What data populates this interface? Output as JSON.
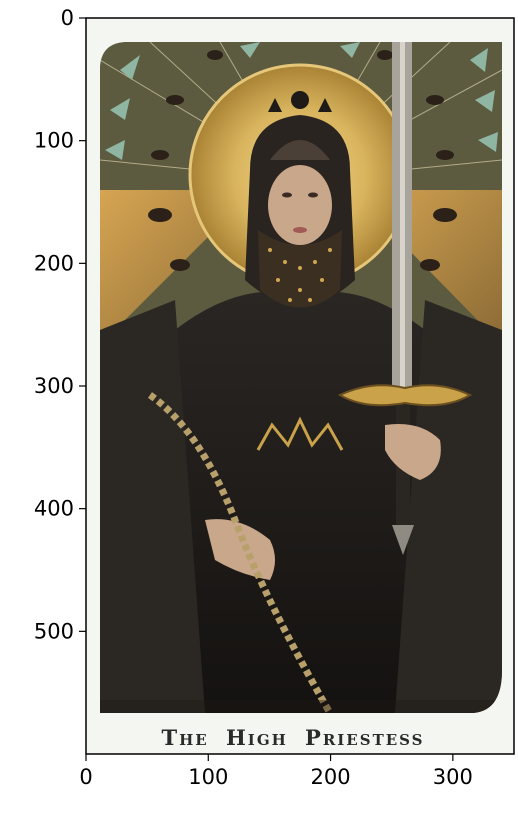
{
  "image": {
    "description_title": "THE HIGH PRIESTESS",
    "title_main": [
      "T",
      "HE",
      "H",
      "IGH",
      "P",
      "RIESTESS"
    ]
  },
  "axes": {
    "xlim": [
      0,
      350
    ],
    "ylim": [
      600,
      0
    ],
    "x_ticks": [
      {
        "value": 0,
        "label": "0"
      },
      {
        "value": 100,
        "label": "100"
      },
      {
        "value": 200,
        "label": "200"
      },
      {
        "value": 300,
        "label": "300"
      }
    ],
    "y_ticks": [
      {
        "value": 0,
        "label": "0"
      },
      {
        "value": 100,
        "label": "100"
      },
      {
        "value": 200,
        "label": "200"
      },
      {
        "value": 300,
        "label": "300"
      },
      {
        "value": 400,
        "label": "400"
      },
      {
        "value": 500,
        "label": "500"
      }
    ]
  },
  "colors": {
    "card_bg": "#f4f6f2",
    "gold": "#c9a24a",
    "dark": "#1e1a17",
    "olive": "#6b6a4c",
    "teal": "#8fb6a3"
  }
}
